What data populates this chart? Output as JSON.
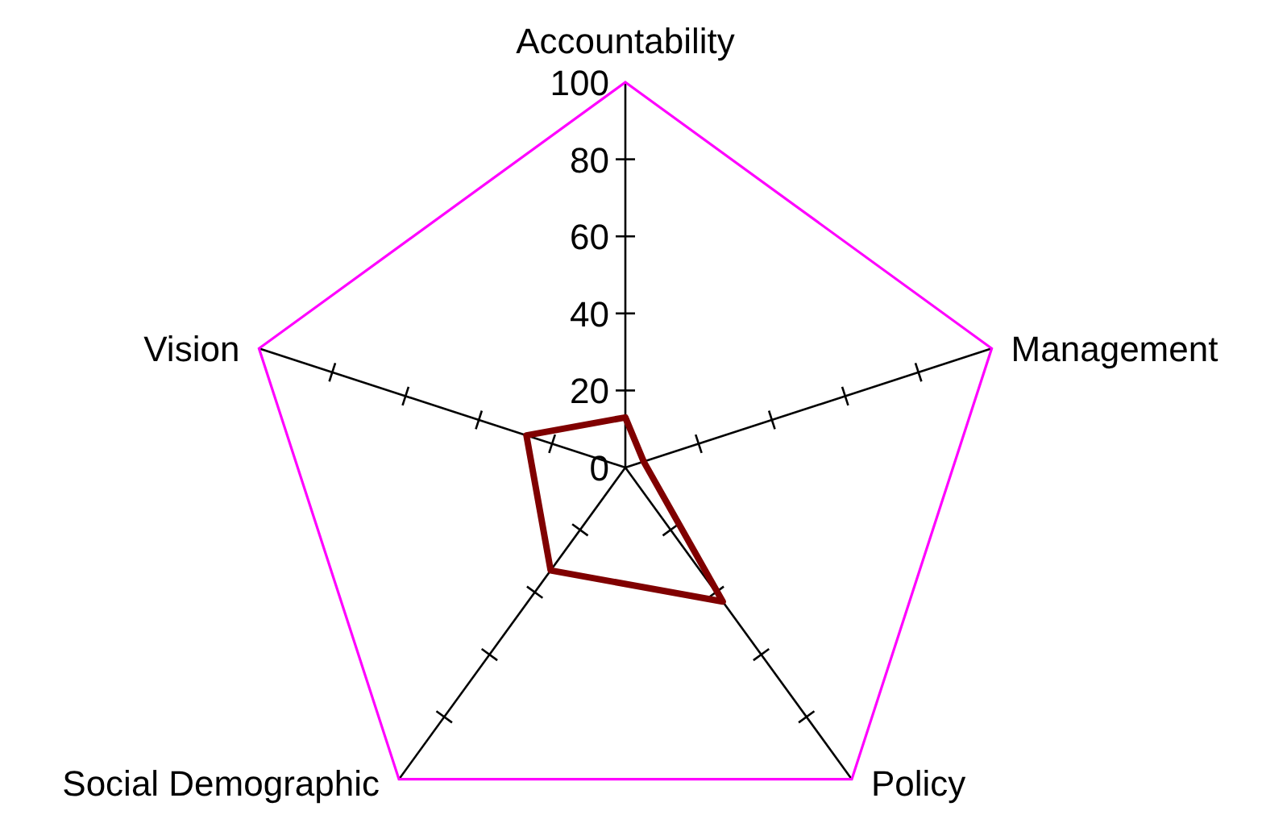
{
  "chart_data": {
    "type": "radar",
    "categories": [
      "Accountability",
      "Management",
      "Policy",
      "Social Demographic",
      "Vision"
    ],
    "ylim": [
      0,
      100
    ],
    "yticks": [
      0,
      20,
      40,
      60,
      80,
      100
    ],
    "grid": false,
    "legend": false,
    "series": [
      {
        "color": "#800000",
        "values": [
          13,
          5,
          43,
          33,
          27
        ]
      }
    ]
  }
}
